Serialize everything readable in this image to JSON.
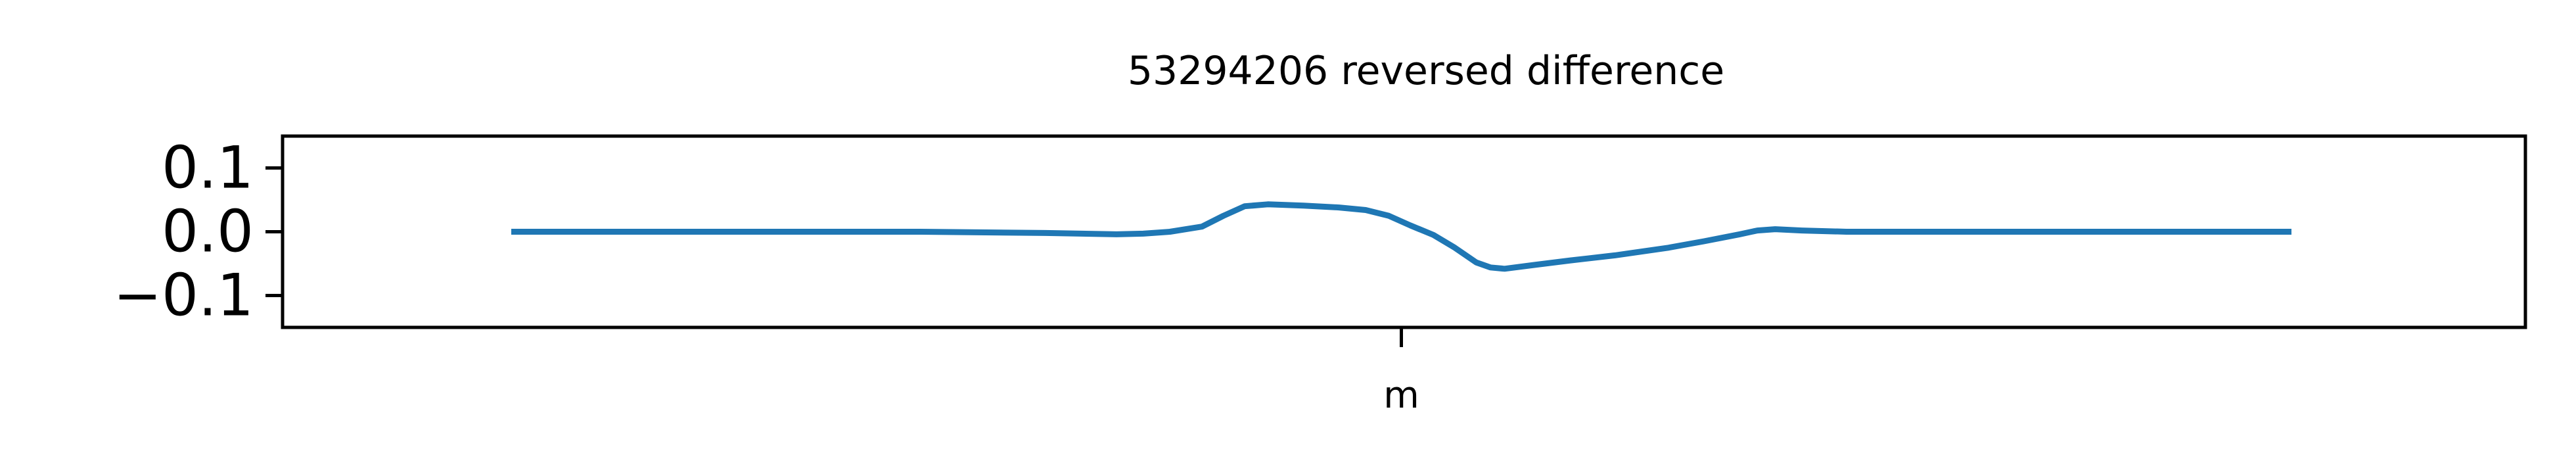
{
  "chart_data": {
    "type": "line",
    "title": "53294206 reversed difference",
    "xlabel": "",
    "ylabel": "",
    "ylim": [
      -0.15,
      0.15
    ],
    "xlim": [
      0,
      1000
    ],
    "yticks": [
      0.1,
      0.0,
      -0.1
    ],
    "ytick_labels": [
      "0.1",
      "0.0",
      "−0.1"
    ],
    "xticks": [
      {
        "x": 500,
        "label": "m"
      }
    ],
    "grid": false,
    "legend": "none",
    "series": [
      {
        "color": "#1f77b4",
        "points": [
          [
            0,
            0.0
          ],
          [
            100,
            0.0
          ],
          [
            200,
            0.0
          ],
          [
            230,
            0.0
          ],
          [
            300,
            -0.002
          ],
          [
            340,
            -0.004
          ],
          [
            355,
            -0.003
          ],
          [
            370,
            0.0
          ],
          [
            388,
            0.008
          ],
          [
            400,
            0.025
          ],
          [
            412,
            0.04
          ],
          [
            425,
            0.043
          ],
          [
            445,
            0.041
          ],
          [
            465,
            0.038
          ],
          [
            480,
            0.034
          ],
          [
            493,
            0.025
          ],
          [
            505,
            0.01
          ],
          [
            518,
            -0.005
          ],
          [
            530,
            -0.025
          ],
          [
            542,
            -0.048
          ],
          [
            550,
            -0.056
          ],
          [
            558,
            -0.058
          ],
          [
            575,
            -0.052
          ],
          [
            595,
            -0.045
          ],
          [
            620,
            -0.037
          ],
          [
            650,
            -0.025
          ],
          [
            670,
            -0.015
          ],
          [
            690,
            -0.004
          ],
          [
            700,
            0.002
          ],
          [
            710,
            0.004
          ],
          [
            725,
            0.002
          ],
          [
            750,
            0.0
          ],
          [
            800,
            0.0
          ],
          [
            900,
            0.0
          ],
          [
            1000,
            0.0
          ]
        ]
      }
    ]
  }
}
